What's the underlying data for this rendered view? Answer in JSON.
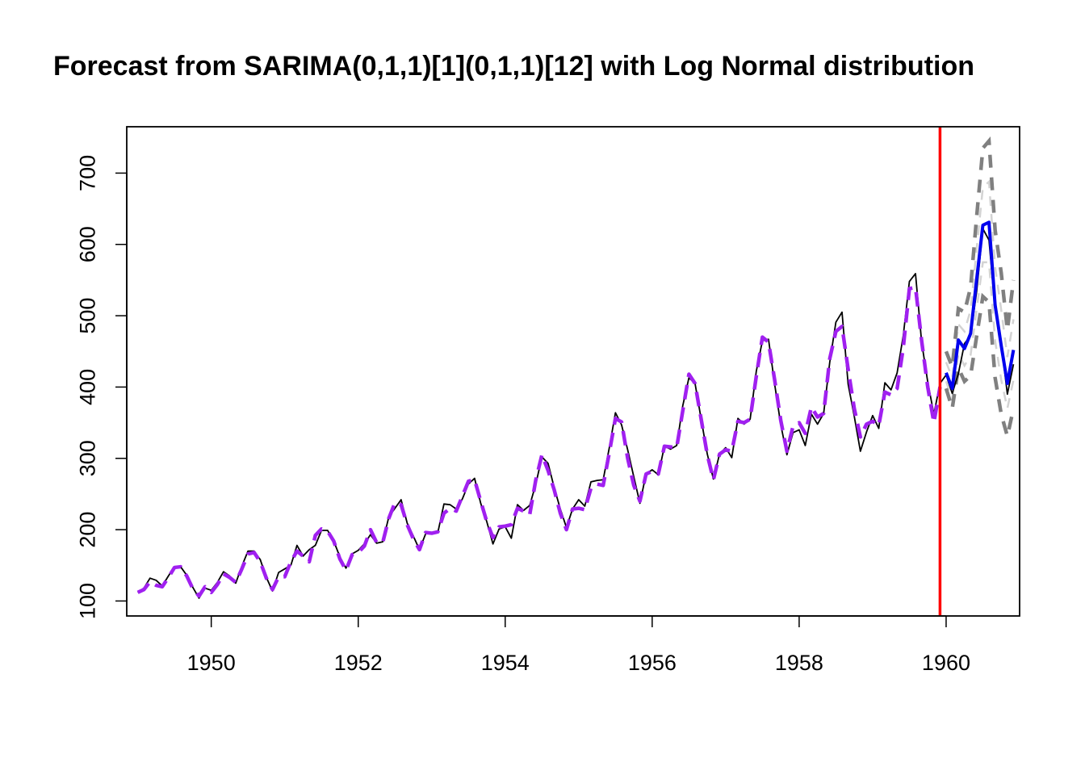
{
  "chart_data": {
    "type": "line",
    "title": "Forecast from SARIMA(0,1,1)[1](0,1,1)[12] with Log Normal distribution",
    "xlabel": "",
    "ylabel": "",
    "xlim": [
      1948.85,
      1961.0
    ],
    "ylim": [
      79,
      765
    ],
    "x_ticks": [
      1950,
      1952,
      1954,
      1956,
      1958,
      1960
    ],
    "x_tick_labels": [
      "1950",
      "1952",
      "1954",
      "1956",
      "1958",
      "1960"
    ],
    "y_ticks": [
      100,
      200,
      300,
      400,
      500,
      600,
      700
    ],
    "y_tick_labels": [
      "100",
      "200",
      "300",
      "400",
      "500",
      "600",
      "700"
    ],
    "grid": false,
    "legend": "none",
    "holdout_start": 1959.917,
    "colors": {
      "actual": "#000000",
      "fitted": "#a020f0",
      "holdout_marker": "#ff0000",
      "forecast": "#0000ee",
      "interval_outer": "#808080",
      "interval_inner": "#d3d3d3"
    },
    "actuals": {
      "start": 1949.0,
      "frequency": 12,
      "values": [
        112,
        118,
        132,
        129,
        121,
        135,
        148,
        148,
        136,
        119,
        104,
        118,
        115,
        126,
        141,
        135,
        125,
        149,
        170,
        170,
        158,
        133,
        114,
        140,
        145,
        150,
        178,
        163,
        172,
        178,
        199,
        199,
        184,
        162,
        146,
        166,
        171,
        180,
        193,
        181,
        183,
        218,
        230,
        242,
        209,
        191,
        172,
        194,
        196,
        196,
        236,
        235,
        229,
        243,
        264,
        272,
        237,
        211,
        180,
        201,
        204,
        188,
        235,
        227,
        234,
        264,
        302,
        293,
        259,
        229,
        203,
        229,
        242,
        233,
        267,
        269,
        270,
        315,
        364,
        347,
        312,
        274,
        237,
        278,
        284,
        277,
        317,
        313,
        318,
        374,
        413,
        405,
        355,
        306,
        271,
        306,
        315,
        301,
        356,
        348,
        355,
        422,
        465,
        467,
        404,
        347,
        305,
        336,
        340,
        318,
        362,
        348,
        363,
        435,
        491,
        505,
        404,
        359,
        310,
        337,
        360,
        342,
        406,
        396,
        420,
        472,
        548,
        559,
        463,
        407,
        362,
        405,
        417,
        391,
        419,
        461,
        472,
        535,
        622,
        606,
        508,
        461,
        390,
        432
      ]
    },
    "fitted": {
      "start": 1949.0,
      "frequency": 12,
      "values": [
        112,
        116,
        127,
        122,
        120,
        133,
        147,
        148,
        135,
        117,
        107,
        120,
        112,
        123,
        138,
        133,
        126,
        145,
        166,
        168,
        155,
        132,
        116,
        134,
        134,
        155,
        170,
        163,
        155,
        192,
        201,
        198,
        184,
        159,
        143,
        165,
        168,
        177,
        200,
        182,
        182,
        216,
        238,
        235,
        207,
        187,
        172,
        196,
        195,
        197,
        223,
        230,
        226,
        247,
        268,
        270,
        240,
        211,
        189,
        204,
        205,
        207,
        230,
        226,
        221,
        270,
        305,
        283,
        256,
        223,
        200,
        229,
        230,
        228,
        258,
        264,
        262,
        308,
        356,
        351,
        300,
        262,
        240,
        278,
        282,
        278,
        317,
        316,
        315,
        367,
        418,
        405,
        355,
        305,
        270,
        306,
        312,
        310,
        352,
        350,
        355,
        415,
        470,
        463,
        410,
        353,
        310,
        345,
        350,
        335,
        372,
        358,
        363,
        440,
        478,
        485,
        425,
        370,
        330,
        348,
        352,
        346,
        393,
        389,
        398,
        455,
        538,
        540,
        465,
        400,
        350,
        400
      ]
    },
    "forecast": {
      "start": 1960.0,
      "frequency": 12,
      "values": [
        420,
        398,
        466,
        454,
        475,
        552,
        627,
        631,
        515,
        458,
        405,
        452
      ]
    },
    "interval_outer": {
      "lower": [
        398,
        370,
        427,
        408,
        416,
        472,
        527,
        519,
        413,
        362,
        331,
        370
      ],
      "upper": [
        450,
        428,
        510,
        505,
        540,
        640,
        735,
        745,
        620,
        560,
        480,
        550
      ]
    },
    "interval_inner": {
      "lower": [
        408,
        383,
        446,
        430,
        445,
        510,
        575,
        575,
        465,
        410,
        370,
        410
      ],
      "upper": [
        435,
        413,
        488,
        478,
        508,
        595,
        680,
        688,
        568,
        508,
        442,
        495
      ]
    }
  }
}
